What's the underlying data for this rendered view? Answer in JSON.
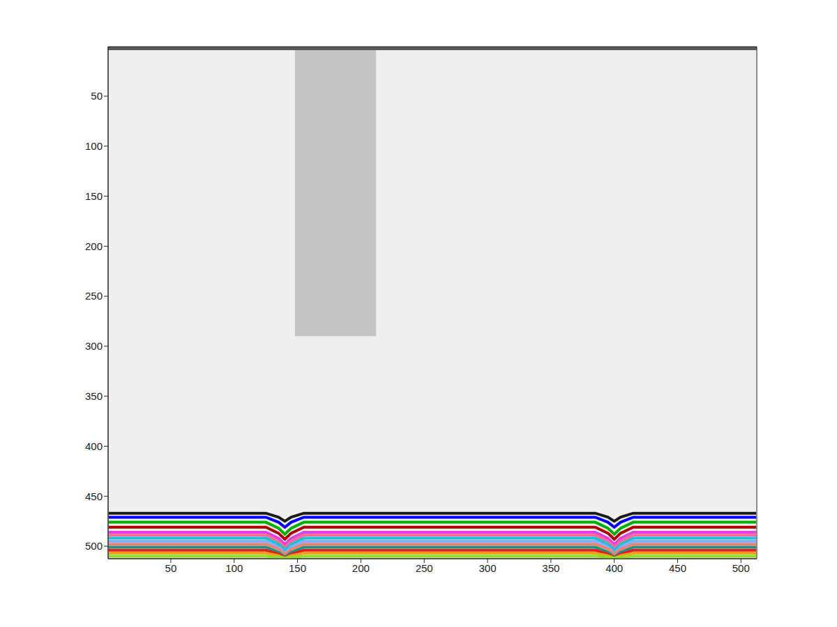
{
  "chart_data": {
    "type": "image",
    "xlim": [
      0.5,
      512.5
    ],
    "ylim": [
      512.5,
      0.5
    ],
    "xticks": [
      50,
      100,
      150,
      200,
      250,
      300,
      350,
      400,
      450,
      500
    ],
    "yticks": [
      50,
      100,
      150,
      200,
      250,
      300,
      350,
      400,
      450,
      500
    ],
    "grid": false,
    "tick_labels": true,
    "regions": [
      {
        "x": [
          148,
          212
        ],
        "y": [
          0.5,
          290
        ],
        "color": "#c4c4c4"
      },
      {
        "x": [
          0.5,
          512.5
        ],
        "y": [
          0.5,
          4
        ],
        "color": "#5a5a5a"
      }
    ],
    "x": [
      1,
      125,
      135,
      140,
      145,
      155,
      385,
      395,
      400,
      405,
      415,
      512
    ],
    "series": [
      {
        "color": "#1a1a1a",
        "values": [
          467,
          467,
          471,
          475,
          471,
          467,
          467,
          471,
          475,
          471,
          467,
          467
        ]
      },
      {
        "color": "#0000ff",
        "values": [
          471,
          471,
          476,
          481,
          476,
          471,
          471,
          476,
          481,
          476,
          471,
          471
        ]
      },
      {
        "color": "#00b000",
        "values": [
          476,
          476,
          482,
          488,
          482,
          476,
          476,
          482,
          488,
          482,
          476,
          476
        ]
      },
      {
        "color": "#b00000",
        "values": [
          481,
          481,
          487,
          493,
          487,
          481,
          481,
          487,
          493,
          487,
          481,
          481
        ]
      },
      {
        "color": "#e040e0",
        "values": [
          486,
          486,
          492,
          498,
          492,
          486,
          486,
          492,
          498,
          492,
          486,
          486
        ]
      },
      {
        "color": "#ff6699",
        "values": [
          489,
          489,
          495,
          501,
          495,
          489,
          489,
          495,
          501,
          495,
          489,
          489
        ]
      },
      {
        "color": "#20c0d0",
        "values": [
          492,
          492,
          498,
          504,
          498,
          492,
          492,
          498,
          504,
          498,
          492,
          492
        ]
      },
      {
        "color": "#80b0ff",
        "values": [
          495,
          495,
          501,
          507,
          501,
          495,
          495,
          501,
          507,
          501,
          495,
          495
        ]
      },
      {
        "color": "#f08070",
        "values": [
          498,
          498,
          503,
          508,
          503,
          498,
          498,
          503,
          508,
          503,
          498,
          498
        ]
      },
      {
        "color": "#209080",
        "values": [
          501,
          501,
          506,
          511,
          506,
          501,
          501,
          506,
          511,
          506,
          501,
          501
        ]
      },
      {
        "color": "#e02020",
        "values": [
          504,
          504,
          508,
          512,
          508,
          504,
          504,
          508,
          512,
          508,
          504,
          504
        ]
      },
      {
        "color": "#f0a020",
        "values": [
          507,
          507,
          509.5,
          512,
          509.5,
          507,
          507,
          509.5,
          512,
          509.5,
          507,
          507
        ]
      },
      {
        "color": "#90e020",
        "values": [
          510,
          510,
          511,
          512,
          511,
          510,
          510,
          511,
          512,
          511,
          510,
          510
        ]
      }
    ]
  }
}
